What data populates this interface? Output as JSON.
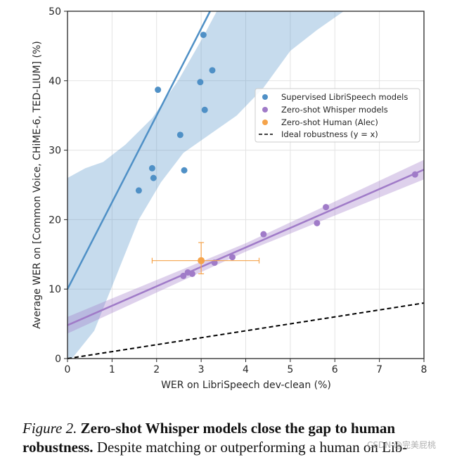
{
  "chart_data": {
    "type": "scatter",
    "xlabel": "WER on LibriSpeech dev-clean (%)",
    "ylabel": "Average WER on [Common Voice, CHiME-6, TED-LIUM] (%)",
    "xlim": [
      0,
      8
    ],
    "ylim": [
      0,
      50
    ],
    "xticks": [
      "0",
      "1",
      "2",
      "3",
      "4",
      "5",
      "6",
      "7",
      "8"
    ],
    "yticks": [
      "0",
      "10",
      "20",
      "30",
      "40",
      "50"
    ],
    "grid": true,
    "legend_position": "center-right",
    "series": [
      {
        "name": "Supervised LibriSpeech models",
        "color": "#4f90c6",
        "points": [
          [
            1.6,
            24.2
          ],
          [
            1.9,
            27.4
          ],
          [
            1.93,
            26.0
          ],
          [
            2.03,
            38.7
          ],
          [
            2.53,
            32.2
          ],
          [
            2.62,
            27.1
          ],
          [
            2.98,
            39.8
          ],
          [
            3.05,
            46.6
          ],
          [
            3.08,
            35.8
          ],
          [
            3.25,
            41.5
          ]
        ],
        "fit": {
          "slope": 12.5,
          "intercept": 10.0
        },
        "band_upper": [
          [
            0,
            26.0
          ],
          [
            0.4,
            27.4
          ],
          [
            0.8,
            28.3
          ],
          [
            1.3,
            30.8
          ],
          [
            1.9,
            34.6
          ],
          [
            2.5,
            40.2
          ],
          [
            3.0,
            45.8
          ],
          [
            3.35,
            50.0
          ]
        ],
        "band_lower": [
          [
            0.1,
            0.0
          ],
          [
            0.6,
            4.0
          ],
          [
            1.1,
            12.0
          ],
          [
            1.6,
            20.0
          ],
          [
            2.1,
            25.4
          ],
          [
            2.6,
            29.6
          ],
          [
            3.2,
            32.3
          ],
          [
            3.8,
            35.0
          ],
          [
            4.4,
            39.0
          ],
          [
            5.0,
            44.3
          ],
          [
            5.6,
            47.3
          ],
          [
            6.2,
            50.0
          ]
        ]
      },
      {
        "name": "Zero-shot Whisper models",
        "color": "#a07bc8",
        "points": [
          [
            2.6,
            11.9
          ],
          [
            2.7,
            12.4
          ],
          [
            2.8,
            12.2
          ],
          [
            3.3,
            13.8
          ],
          [
            3.7,
            14.6
          ],
          [
            4.4,
            17.9
          ],
          [
            5.6,
            19.5
          ],
          [
            5.8,
            21.8
          ],
          [
            7.8,
            26.5
          ]
        ],
        "fit": {
          "slope": 2.8,
          "intercept": 4.8
        },
        "band_halfwidth_ends": [
          1.2,
          0.6,
          1.4
        ]
      },
      {
        "name": "Zero-shot Human (Alec)",
        "color": "#f5a34a",
        "points": [
          [
            3.0,
            14.1
          ]
        ],
        "x_error": [
          1.9,
          4.3
        ],
        "y_error": [
          12.2,
          16.7
        ]
      },
      {
        "name": "Ideal robustness (y = x)",
        "color": "#000000",
        "line": [
          [
            0,
            0
          ],
          [
            8,
            8
          ]
        ],
        "dash": true
      }
    ]
  },
  "caption": {
    "figure_label": "Figure 2.",
    "title_line1": "Zero-shot Whisper models close the gap to human",
    "title_line2": "robustness.",
    "body": "Despite matching or outperforming a human on Lib-"
  },
  "watermark": "CSDN @完美屁桃"
}
